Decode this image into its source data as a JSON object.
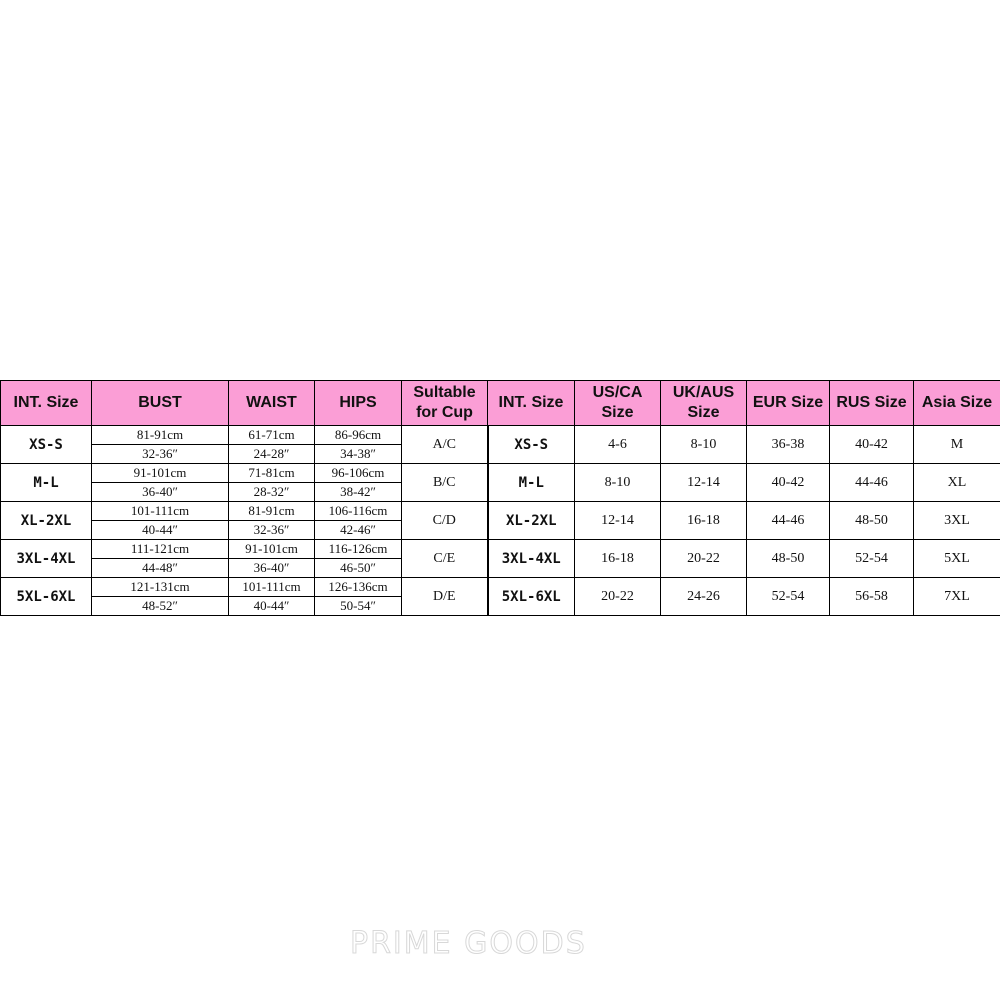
{
  "headers": [
    "INT. Size",
    "BUST",
    "WAIST",
    "HIPS",
    "Sultable for Cup",
    "INT. Size",
    "US/CA Size",
    "UK/AUS Size",
    "EUR Size",
    "RUS Size",
    "Asia Size"
  ],
  "rows": [
    {
      "size": "XS-S",
      "bust": [
        "81-91cm",
        "32-36″"
      ],
      "waist": [
        "61-71cm",
        "24-28″"
      ],
      "hips": [
        "86-96cm",
        "34-38″"
      ],
      "cup": "A/C",
      "size2": "XS-S",
      "us": "4-6",
      "uk": "8-10",
      "eur": "36-38",
      "rus": "40-42",
      "asia": "M"
    },
    {
      "size": "M-L",
      "bust": [
        "91-101cm",
        "36-40″"
      ],
      "waist": [
        "71-81cm",
        "28-32″"
      ],
      "hips": [
        "96-106cm",
        "38-42″"
      ],
      "cup": "B/C",
      "size2": "M-L",
      "us": "8-10",
      "uk": "12-14",
      "eur": "40-42",
      "rus": "44-46",
      "asia": "XL"
    },
    {
      "size": "XL-2XL",
      "bust": [
        "101-111cm",
        "40-44″"
      ],
      "waist": [
        "81-91cm",
        "32-36″"
      ],
      "hips": [
        "106-116cm",
        "42-46″"
      ],
      "cup": "C/D",
      "size2": "XL-2XL",
      "us": "12-14",
      "uk": "16-18",
      "eur": "44-46",
      "rus": "48-50",
      "asia": "3XL"
    },
    {
      "size": "3XL-4XL",
      "bust": [
        "111-121cm",
        "44-48″"
      ],
      "waist": [
        "91-101cm",
        "36-40″"
      ],
      "hips": [
        "116-126cm",
        "46-50″"
      ],
      "cup": "C/E",
      "size2": "3XL-4XL",
      "us": "16-18",
      "uk": "20-22",
      "eur": "48-50",
      "rus": "52-54",
      "asia": "5XL"
    },
    {
      "size": "5XL-6XL",
      "bust": [
        "121-131cm",
        "48-52″"
      ],
      "waist": [
        "101-111cm",
        "40-44″"
      ],
      "hips": [
        "126-136cm",
        "50-54″"
      ],
      "cup": "D/E",
      "size2": "5XL-6XL",
      "us": "20-22",
      "uk": "24-26",
      "eur": "52-54",
      "rus": "56-58",
      "asia": "7XL"
    }
  ],
  "watermark": "PRIME GOODS",
  "colors": {
    "header_bg": "#fb9ed6"
  }
}
